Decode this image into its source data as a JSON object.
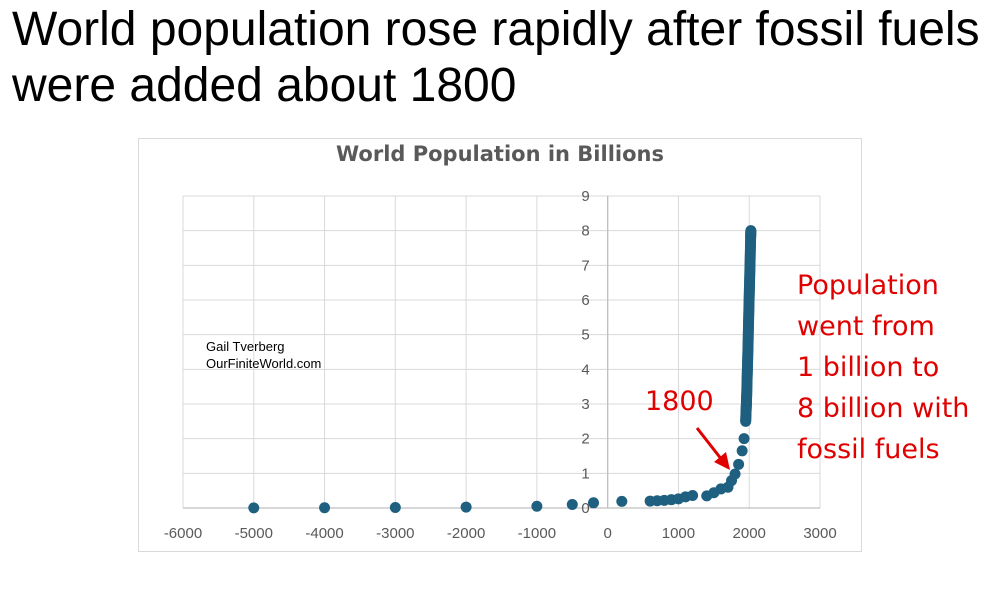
{
  "slide": {
    "headline": "World population rose rapidly after fossil fuels were added about 1800"
  },
  "annotations": {
    "credit_line1": "Gail Tverberg",
    "credit_line2": "OurFiniteWorld.com",
    "marker_label": "1800",
    "callout_lines": [
      "Population",
      "went from",
      "1 billion to",
      "8 billion with",
      "fossil fuels"
    ]
  },
  "colors": {
    "marker": "#1f5f7f",
    "annotation": "#e00000",
    "gridline": "#d9d9d9",
    "axis": "#bfbfbf",
    "text": "#595959"
  },
  "chart_data": {
    "type": "scatter",
    "title": "World Population in Billions",
    "xlabel": "",
    "ylabel": "",
    "xlim": [
      -6000,
      3000
    ],
    "ylim": [
      0,
      9
    ],
    "xticks": [
      -6000,
      -5000,
      -4000,
      -3000,
      -2000,
      -1000,
      0,
      1000,
      2000,
      3000
    ],
    "yticks": [
      0,
      1,
      2,
      3,
      4,
      5,
      6,
      7,
      8,
      9
    ],
    "grid": true,
    "legend": "none",
    "series": [
      {
        "x": [
          -5000,
          -4000,
          -3000,
          -2000,
          -1000,
          -500,
          -200,
          200,
          600,
          700,
          800,
          900,
          1000,
          1100,
          1200,
          1400,
          1500,
          1600,
          1700,
          1750,
          1800,
          1850,
          1900,
          1927,
          1950,
          1955,
          1960,
          1965,
          1970,
          1975,
          1980,
          1985,
          1990,
          1995,
          2000,
          2005,
          2010,
          2015,
          2020,
          2023
        ],
        "y": [
          0.005,
          0.007,
          0.014,
          0.027,
          0.05,
          0.1,
          0.15,
          0.19,
          0.2,
          0.21,
          0.22,
          0.24,
          0.265,
          0.32,
          0.36,
          0.35,
          0.44,
          0.55,
          0.6,
          0.79,
          0.98,
          1.26,
          1.65,
          2.0,
          2.5,
          2.77,
          3.0,
          3.3,
          3.7,
          4.06,
          4.44,
          4.85,
          5.3,
          5.72,
          6.13,
          6.51,
          6.92,
          7.35,
          7.8,
          8.0
        ]
      }
    ]
  }
}
